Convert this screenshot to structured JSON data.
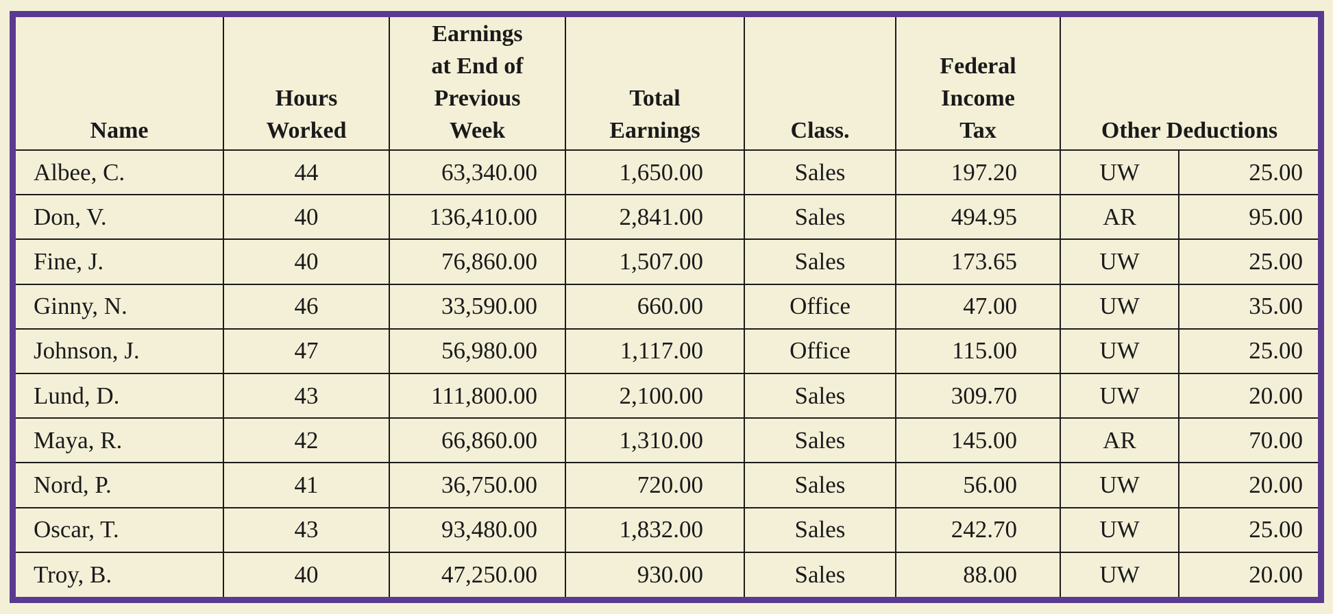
{
  "headers": {
    "name": "Name",
    "hours": [
      "Hours",
      "Worked"
    ],
    "prev": [
      "Earnings",
      "at End of",
      "Previous",
      "Week"
    ],
    "total": [
      "Total",
      "Earnings"
    ],
    "class": "Class.",
    "fit": [
      "Federal",
      "Income",
      "Tax"
    ],
    "other": "Other Deductions"
  },
  "rows": [
    {
      "name": "Albee, C.",
      "hours": "44",
      "prev": "63,340.00",
      "total": "1,650.00",
      "class": "Sales",
      "fit": "197.20",
      "code": "UW",
      "amount": "25.00"
    },
    {
      "name": "Don, V.",
      "hours": "40",
      "prev": "136,410.00",
      "total": "2,841.00",
      "class": "Sales",
      "fit": "494.95",
      "code": "AR",
      "amount": "95.00"
    },
    {
      "name": "Fine, J.",
      "hours": "40",
      "prev": "76,860.00",
      "total": "1,507.00",
      "class": "Sales",
      "fit": "173.65",
      "code": "UW",
      "amount": "25.00"
    },
    {
      "name": "Ginny, N.",
      "hours": "46",
      "prev": "33,590.00",
      "total": "660.00",
      "class": "Office",
      "fit": "47.00",
      "code": "UW",
      "amount": "35.00"
    },
    {
      "name": "Johnson, J.",
      "hours": "47",
      "prev": "56,980.00",
      "total": "1,117.00",
      "class": "Office",
      "fit": "115.00",
      "code": "UW",
      "amount": "25.00"
    },
    {
      "name": "Lund, D.",
      "hours": "43",
      "prev": "111,800.00",
      "total": "2,100.00",
      "class": "Sales",
      "fit": "309.70",
      "code": "UW",
      "amount": "20.00"
    },
    {
      "name": "Maya, R.",
      "hours": "42",
      "prev": "66,860.00",
      "total": "1,310.00",
      "class": "Sales",
      "fit": "145.00",
      "code": "AR",
      "amount": "70.00"
    },
    {
      "name": "Nord, P.",
      "hours": "41",
      "prev": "36,750.00",
      "total": "720.00",
      "class": "Sales",
      "fit": "56.00",
      "code": "UW",
      "amount": "20.00"
    },
    {
      "name": "Oscar, T.",
      "hours": "43",
      "prev": "93,480.00",
      "total": "1,832.00",
      "class": "Sales",
      "fit": "242.70",
      "code": "UW",
      "amount": "25.00"
    },
    {
      "name": "Troy, B.",
      "hours": "40",
      "prev": "47,250.00",
      "total": "930.00",
      "class": "Sales",
      "fit": "88.00",
      "code": "UW",
      "amount": "20.00"
    }
  ],
  "colors": {
    "background": "#f4f0d8",
    "frame": "#5b3a92",
    "rule": "#1a1a1a"
  }
}
